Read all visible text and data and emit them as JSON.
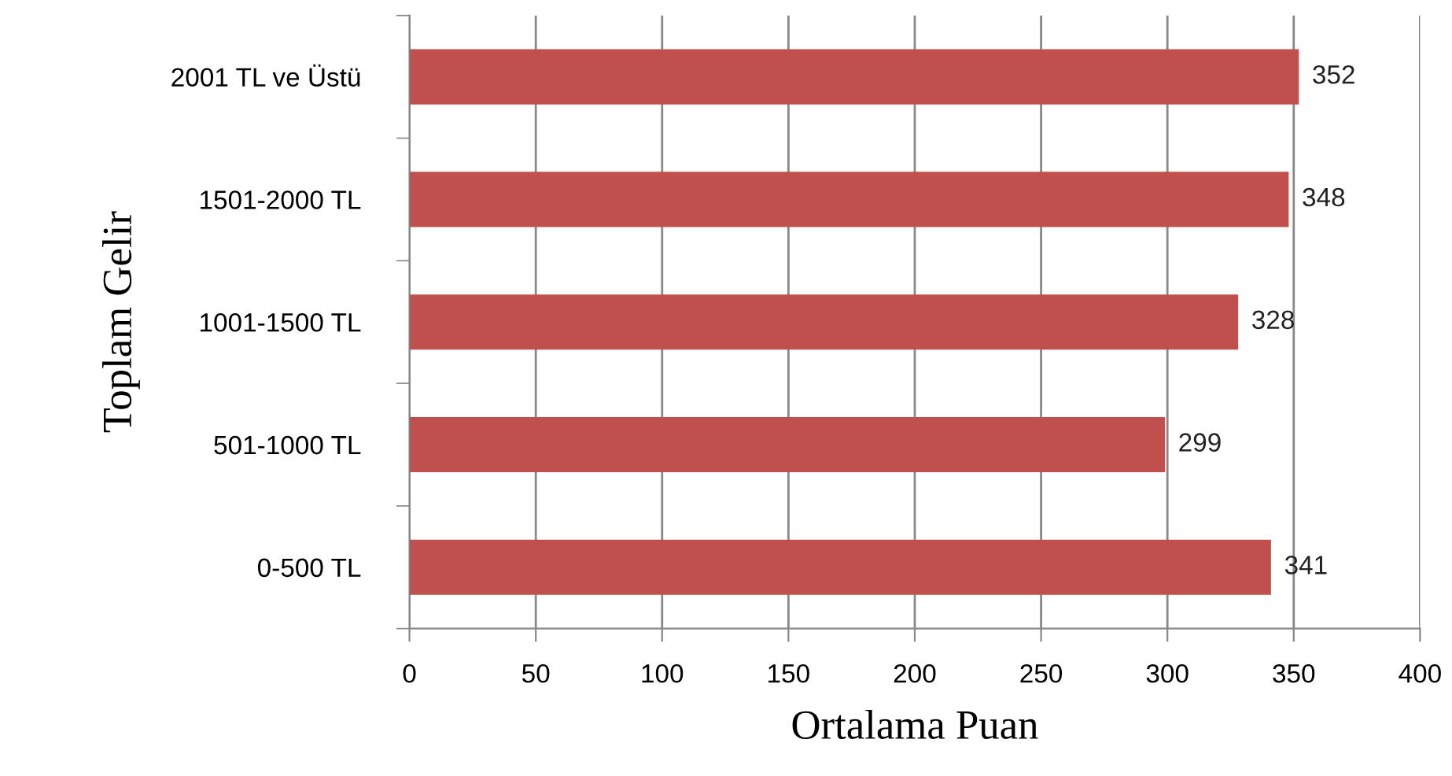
{
  "chart_data": {
    "type": "bar",
    "orientation": "horizontal",
    "xlabel": "Ortalama Puan",
    "ylabel": "Toplam Gelir",
    "categories": [
      "2001 TL ve Üstü",
      "1501-2000 TL",
      "1001-1500 TL",
      "501-1000 TL",
      "0-500 TL"
    ],
    "values": [
      352,
      348,
      328,
      299,
      341
    ],
    "color": "#c0504d",
    "xlim": [
      0,
      400
    ],
    "xticks": [
      0,
      50,
      100,
      150,
      200,
      250,
      300,
      350,
      400
    ],
    "grid": "x",
    "data_labels": true
  }
}
